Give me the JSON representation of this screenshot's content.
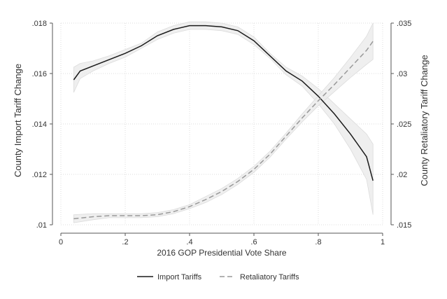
{
  "chart_data": {
    "type": "line",
    "xlabel": "2016 GOP Presidential Vote Share",
    "ylabel_left": "County Import Tariff Change",
    "ylabel_right": "County Retaliatory Tariff Change",
    "xlim": [
      0,
      1
    ],
    "ylim_left": [
      0.01,
      0.018
    ],
    "ylim_right": [
      0.015,
      0.035
    ],
    "x_ticks": [
      {
        "value": 0,
        "label": "0"
      },
      {
        "value": 0.2,
        "label": ".2"
      },
      {
        "value": 0.4,
        "label": ".4"
      },
      {
        "value": 0.6,
        "label": ".6"
      },
      {
        "value": 0.8,
        "label": ".8"
      },
      {
        "value": 1,
        "label": "1"
      }
    ],
    "y_ticks_left": [
      {
        "value": 0.01,
        "label": ".01"
      },
      {
        "value": 0.012,
        "label": ".012"
      },
      {
        "value": 0.014,
        "label": ".014"
      },
      {
        "value": 0.016,
        "label": ".016"
      },
      {
        "value": 0.018,
        "label": ".018"
      }
    ],
    "y_ticks_right": [
      {
        "value": 0.015,
        "label": ".015"
      },
      {
        "value": 0.02,
        "label": ".02"
      },
      {
        "value": 0.025,
        "label": ".025"
      },
      {
        "value": 0.03,
        "label": ".03"
      },
      {
        "value": 0.035,
        "label": ".035"
      }
    ],
    "grid": true,
    "legend_position": "bottom",
    "series": [
      {
        "name": "Import Tariffs",
        "axis": "left",
        "style": "solid",
        "color": "#1a1a1a",
        "band_color": "#ececec",
        "x": [
          0.04,
          0.06,
          0.1,
          0.15,
          0.2,
          0.25,
          0.3,
          0.35,
          0.4,
          0.45,
          0.5,
          0.55,
          0.6,
          0.65,
          0.7,
          0.75,
          0.8,
          0.85,
          0.9,
          0.95,
          0.97
        ],
        "y": [
          0.01575,
          0.0161,
          0.0163,
          0.01655,
          0.0168,
          0.0171,
          0.0175,
          0.01775,
          0.0179,
          0.0179,
          0.01785,
          0.0177,
          0.0173,
          0.0167,
          0.0161,
          0.0157,
          0.0151,
          0.0144,
          0.0136,
          0.0127,
          0.01175
        ],
        "lower": [
          0.01525,
          0.0158,
          0.0161,
          0.0164,
          0.01665,
          0.017,
          0.01735,
          0.0176,
          0.01775,
          0.01775,
          0.0177,
          0.01755,
          0.01715,
          0.0166,
          0.01595,
          0.0155,
          0.0148,
          0.014,
          0.013,
          0.0118,
          0.0104
        ],
        "upper": [
          0.01625,
          0.0164,
          0.0165,
          0.0167,
          0.01695,
          0.0172,
          0.01765,
          0.0179,
          0.01805,
          0.01805,
          0.018,
          0.01785,
          0.01745,
          0.0168,
          0.01625,
          0.0159,
          0.0154,
          0.0148,
          0.0142,
          0.0136,
          0.0132
        ]
      },
      {
        "name": "Retaliatory Tariffs",
        "axis": "right",
        "style": "dashed",
        "color": "#999999",
        "band_color": "#ececec",
        "x": [
          0.04,
          0.1,
          0.15,
          0.2,
          0.25,
          0.3,
          0.35,
          0.4,
          0.45,
          0.5,
          0.55,
          0.6,
          0.65,
          0.7,
          0.75,
          0.8,
          0.85,
          0.9,
          0.95,
          0.97
        ],
        "y": [
          0.0156,
          0.0158,
          0.0159,
          0.0159,
          0.0159,
          0.016,
          0.0163,
          0.0168,
          0.0175,
          0.0183,
          0.0193,
          0.0205,
          0.022,
          0.0238,
          0.0256,
          0.0273,
          0.0289,
          0.0306,
          0.0323,
          0.0332
        ],
        "lower": [
          0.0152,
          0.0155,
          0.0157,
          0.0157,
          0.0157,
          0.0158,
          0.0161,
          0.0166,
          0.0172,
          0.018,
          0.019,
          0.0202,
          0.0217,
          0.0235,
          0.0252,
          0.0268,
          0.0282,
          0.0296,
          0.0309,
          0.0314
        ],
        "upper": [
          0.016,
          0.0161,
          0.0161,
          0.0161,
          0.0161,
          0.0162,
          0.0165,
          0.017,
          0.0178,
          0.0186,
          0.0196,
          0.0208,
          0.0223,
          0.0241,
          0.026,
          0.0278,
          0.0296,
          0.0316,
          0.0337,
          0.035
        ]
      }
    ]
  }
}
